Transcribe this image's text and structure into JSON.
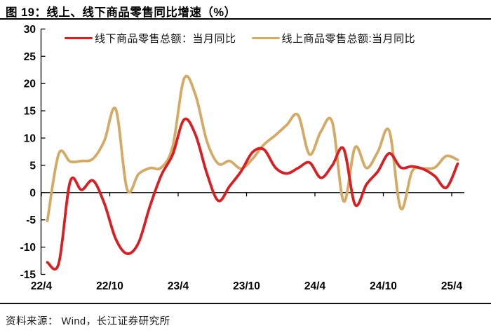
{
  "title": "图 19：线上、线下商品零售同比增速（%）",
  "legend": [
    {
      "key": "offline",
      "label": "线下商品零售总额：当月同比",
      "color": "#da1e22"
    },
    {
      "key": "online",
      "label": "线上商品零售总额:当月同比",
      "color": "#d4aa64"
    }
  ],
  "footer": {
    "text": "资料来源： Wind，长江证券研究所"
  },
  "chart_data": {
    "type": "line",
    "title": "线上、线下商品零售同比增速（%）",
    "xlabel": "",
    "ylabel": "",
    "ylim": [
      -15,
      30
    ],
    "ytick_step": 5,
    "ytick_labels": [
      "30",
      "25",
      "20",
      "15",
      "10",
      "5",
      "0",
      "-5",
      "-10",
      "-15"
    ],
    "xtick_labels": [
      "22/4",
      "22/10",
      "23/4",
      "23/10",
      "24/4",
      "24/10",
      "25/4"
    ],
    "grid": false,
    "legend_position": "top",
    "x": [
      "22/4",
      "22/5",
      "22/6",
      "22/7",
      "22/8",
      "22/9",
      "22/10",
      "22/11",
      "22/12",
      "23/1",
      "23/2",
      "23/3",
      "23/4",
      "23/5",
      "23/6",
      "23/7",
      "23/8",
      "23/9",
      "23/10",
      "23/11",
      "23/12",
      "24/1",
      "24/2",
      "24/3",
      "24/4",
      "24/5",
      "24/6",
      "24/7",
      "24/8",
      "24/9",
      "24/10",
      "24/11",
      "24/12",
      "25/1",
      "25/2",
      "25/3",
      "25/4"
    ],
    "series": [
      {
        "name": "线下商品零售总额：当月同比",
        "color": "#da1e22",
        "values": [
          -12.8,
          -13.0,
          2.0,
          0.5,
          2.2,
          -2.0,
          -8.5,
          -11.2,
          -9.2,
          -2.5,
          3.2,
          7.0,
          13.4,
          10.6,
          3.5,
          -1.5,
          1.2,
          3.9,
          7.4,
          7.9,
          4.6,
          3.5,
          4.5,
          5.5,
          2.7,
          5.0,
          8.0,
          -2.2,
          1.5,
          3.9,
          7.2,
          4.6,
          4.8,
          4.3,
          3.0,
          0.9,
          5.3
        ]
      },
      {
        "name": "线上商品零售总额:当月同比",
        "color": "#d4aa64",
        "values": [
          -5.2,
          7.1,
          5.7,
          5.8,
          6.2,
          9.5,
          15.3,
          0.6,
          3.4,
          4.5,
          4.6,
          8.5,
          20.9,
          17.9,
          9.4,
          5.3,
          5.8,
          4.4,
          6.2,
          8.8,
          10.5,
          12.4,
          14.2,
          7.0,
          11.2,
          12.9,
          -1.6,
          8.3,
          4.5,
          7.5,
          11.3,
          -2.9,
          3.9,
          4.4,
          4.6,
          6.7,
          6.0
        ]
      }
    ]
  }
}
